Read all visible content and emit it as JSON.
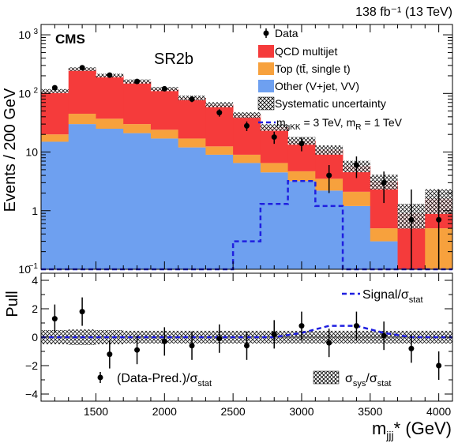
{
  "header": {
    "lumi_text": "138 fb⁻¹ (13 TeV)"
  },
  "chart_data": [
    {
      "type": "bar",
      "panel": "main",
      "experiment_label": "CMS",
      "region_label": "SR2b",
      "ylabel": "Events / 200 GeV",
      "yscale": "log",
      "ylim": [
        0.1,
        1500
      ],
      "xlim": [
        1100,
        4100
      ],
      "bin_edges": [
        1100,
        1300,
        1500,
        1700,
        1900,
        2100,
        2300,
        2500,
        2700,
        2900,
        3100,
        3300,
        3500,
        3700,
        3900,
        4100
      ],
      "y_ticks": [
        {
          "value": 0.1,
          "base": "10",
          "exp": "−1"
        },
        {
          "value": 1,
          "base": "1",
          "exp": ""
        },
        {
          "value": 10,
          "base": "10",
          "exp": ""
        },
        {
          "value": 100,
          "base": "10",
          "exp": "2"
        },
        {
          "value": 1000,
          "base": "10",
          "exp": "3"
        }
      ],
      "series": [
        {
          "name": "Other (V+jet, VV)",
          "color": "#6ea0f0",
          "values": [
            15,
            30,
            25,
            21,
            17,
            12,
            9,
            6.5,
            4.5,
            3.2,
            2.2,
            1.2,
            0.3,
            0.1,
            0.1
          ]
        },
        {
          "name": "Top (tt̄, single t)",
          "color": "#f7a13d",
          "values": [
            5,
            15,
            12,
            9,
            7,
            5,
            3.5,
            2.5,
            2,
            1.5,
            1.3,
            0.9,
            0.2,
            0.0,
            0.4
          ]
        },
        {
          "name": "QCD multijet",
          "color": "#f53b3b",
          "values": [
            90,
            215,
            165,
            130,
            95,
            67,
            52,
            34,
            20,
            11,
            7.5,
            3.7,
            2.7,
            0.8,
            1.1
          ]
        }
      ],
      "systematic_uncertainty": {
        "name": "Systematic uncertainty",
        "relative": [
          0.08,
          0.07,
          0.07,
          0.08,
          0.08,
          0.09,
          0.1,
          0.11,
          0.13,
          0.15,
          0.18,
          0.22,
          0.28,
          0.45,
          0.45
        ]
      },
      "data": {
        "name": "Data",
        "x": [
          1200,
          1400,
          1600,
          1800,
          2000,
          2200,
          2400,
          2600,
          2800,
          3000,
          3200,
          3400,
          3600,
          3800,
          4000
        ],
        "y": [
          125,
          275,
          205,
          160,
          120,
          80,
          47,
          28,
          18,
          14,
          4,
          6,
          3,
          0.7,
          0.7
        ],
        "err_low": [
          11,
          16,
          14,
          12.5,
          11,
          9,
          6.8,
          5.2,
          4.2,
          3.7,
          2.0,
          2.4,
          1.65,
          0.6,
          0.6
        ],
        "err_high": [
          11,
          16,
          14,
          12.5,
          11,
          9,
          6.8,
          5.2,
          4.2,
          3.7,
          2.0,
          2.4,
          1.65,
          1.6,
          1.6
        ]
      },
      "signal": {
        "label_main": "m",
        "label_sub1": "gKK",
        "label_mid": " = 3 TeV, m",
        "label_sub2": "R",
        "label_end": " = 1 TeV",
        "color": "#1f1fe0",
        "values": [
          0.1,
          0.1,
          0.1,
          0.1,
          0.1,
          0.1,
          0.1,
          0.3,
          1.3,
          3.2,
          1.2,
          0.1,
          0.1,
          0.1,
          0.1
        ]
      },
      "legend_position": "top-right"
    },
    {
      "type": "scatter",
      "panel": "pull",
      "ylabel": "Pull",
      "xlabel_main": "m",
      "xlabel_sub": "jjj",
      "xlabel_end": "* (GeV)",
      "xlim": [
        1100,
        4100
      ],
      "ylim": [
        -4.5,
        4.5
      ],
      "x_ticks": [
        1500,
        2000,
        2500,
        3000,
        3500,
        4000
      ],
      "y_ticks": [
        -4,
        -2,
        0,
        2,
        4
      ],
      "pull": {
        "x": [
          1200,
          1400,
          1600,
          1800,
          2000,
          2200,
          2400,
          2600,
          2800,
          3000,
          3200,
          3400,
          3600,
          3800,
          4000
        ],
        "y": [
          1.3,
          1.8,
          -1.2,
          -0.9,
          -0.3,
          -0.6,
          -0.1,
          -0.6,
          0.2,
          0.8,
          -0.4,
          0.8,
          0.1,
          -0.8,
          -2.0
        ],
        "err": [
          1,
          1,
          1,
          1,
          1,
          1,
          1,
          1,
          1,
          1,
          1,
          1,
          1,
          1,
          1
        ]
      },
      "syst_band_halfwidth": [
        0.5,
        0.55,
        0.5,
        0.45,
        0.45,
        0.45,
        0.45,
        0.45,
        0.45,
        0.45,
        0.45,
        0.45,
        0.45,
        0.45,
        0.45
      ],
      "signal_pull": [
        0.0,
        0.0,
        0.0,
        0.0,
        0.0,
        0.0,
        0.0,
        0.0,
        0.0,
        0.3,
        0.8,
        0.8,
        0.3,
        0.0,
        0.0
      ],
      "legend_signal_main": "Signal/σ",
      "legend_signal_sub": "stat",
      "legend_data_main": "(Data-Pred.)/σ",
      "legend_data_sub": "stat",
      "legend_sys_main": "σ",
      "legend_sys_sub1": "sys",
      "legend_sys_mid": "/σ",
      "legend_sys_sub2": "stat"
    }
  ]
}
